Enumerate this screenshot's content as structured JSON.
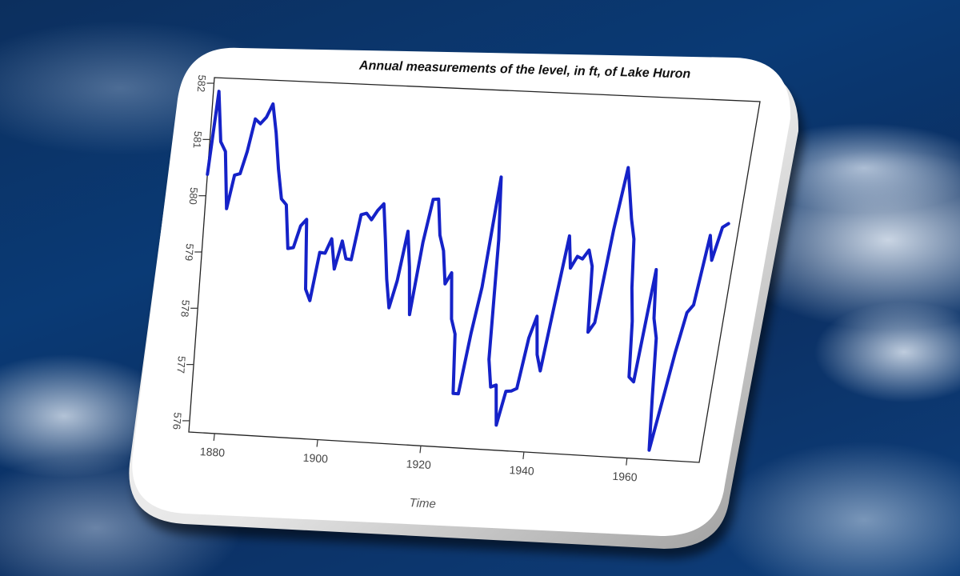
{
  "colors": {
    "line": "#1522c8",
    "card": "#ffffff",
    "ocean": "#0b3a75"
  },
  "chart_data": {
    "type": "line",
    "title": "Annual measurements of the level, in ft, of Lake Huron",
    "xlabel": "Time",
    "ylabel": "",
    "xlim": [
      1875,
      1974
    ],
    "ylim": [
      575.8,
      582.1
    ],
    "x_ticks": [
      "1880",
      "1900",
      "1920",
      "1940",
      "1960"
    ],
    "y_ticks": [
      "576",
      "577",
      "578",
      "579",
      "580",
      "581",
      "582"
    ],
    "grid": false,
    "series": [
      {
        "x": [
          1875,
          1876,
          1877,
          1878,
          1879,
          1880,
          1881,
          1882,
          1883,
          1884,
          1885,
          1886,
          1887,
          1888,
          1889,
          1890,
          1891,
          1892,
          1893,
          1894,
          1895,
          1896,
          1897,
          1898,
          1899,
          1900,
          1901,
          1902,
          1903,
          1904,
          1905,
          1906,
          1907,
          1908,
          1909,
          1910,
          1911,
          1912,
          1913,
          1914,
          1915,
          1916,
          1917,
          1918,
          1919,
          1920,
          1921,
          1922,
          1923,
          1924,
          1925,
          1926,
          1927,
          1928,
          1929,
          1930,
          1931,
          1932,
          1933,
          1934,
          1935,
          1936,
          1937,
          1938,
          1939,
          1940,
          1941,
          1942,
          1943,
          1944,
          1945,
          1946,
          1947,
          1948,
          1949,
          1950,
          1951,
          1952,
          1953,
          1954,
          1955,
          1956,
          1957,
          1958,
          1959,
          1960,
          1961,
          1962,
          1963,
          1964,
          1965,
          1966,
          1967,
          1968,
          1969,
          1970,
          1971,
          1972
        ],
        "values": [
          580.38,
          581.86,
          580.97,
          580.8,
          579.79,
          580.39,
          580.42,
          580.82,
          581.4,
          581.32,
          581.44,
          581.68,
          581.17,
          580.53,
          580.01,
          579.91,
          579.14,
          579.16,
          579.55,
          579.67,
          578.44,
          578.24,
          579.1,
          579.09,
          579.35,
          578.82,
          579.32,
          579.01,
          579.0,
          579.8,
          579.83,
          579.72,
          579.89,
          580.01,
          579.37,
          578.69,
          578.19,
          578.67,
          579.55,
          578.92,
          578.09,
          579.37,
          580.13,
          580.14,
          579.51,
          579.24,
          578.66,
          578.86,
          578.05,
          577.79,
          576.75,
          576.75,
          577.82,
          578.64,
          580.58,
          579.48,
          577.38,
          576.9,
          576.94,
          576.24,
          576.84,
          576.85,
          576.9,
          577.79,
          578.18,
          577.51,
          577.23,
          578.42,
          579.61,
          579.05,
          579.26,
          579.22,
          579.38,
          579.1,
          577.95,
          578.12,
          579.75,
          580.85,
          580.41,
          579.96,
          579.61,
          578.76,
          578.18,
          577.21,
          577.13,
          579.1,
          578.25,
          577.91,
          576.89,
          575.96,
          576.8,
          577.68,
          578.38,
          578.52,
          579.74,
          579.31,
          579.89,
          579.96
        ]
      }
    ]
  }
}
